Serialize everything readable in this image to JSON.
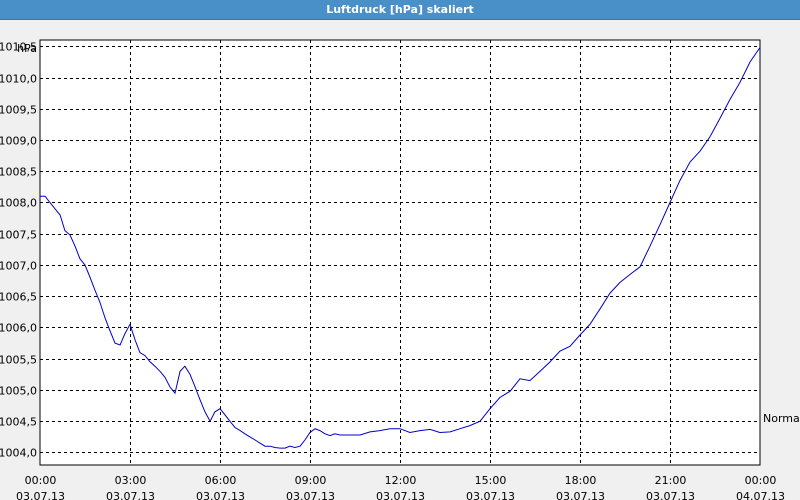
{
  "window": {
    "title": "Luftdruck [hPa] skaliert"
  },
  "colors": {
    "titlebar": "#4a90c8",
    "line": "#0000cc",
    "plot_bg": "#ffffff",
    "grid": "#000000"
  },
  "chart_data": {
    "type": "line",
    "title": "Luftdruck [hPa] skaliert",
    "ylabel": "hPa",
    "xlabel": "",
    "ylim": [
      1003.8,
      1010.6
    ],
    "y_ticks": [
      1004.0,
      1004.5,
      1005.0,
      1005.5,
      1006.0,
      1006.5,
      1007.0,
      1007.5,
      1008.0,
      1008.5,
      1009.0,
      1009.5,
      1010.0,
      1010.5
    ],
    "y_tick_labels": [
      "1004,0",
      "1004,5",
      "1005,0",
      "1005,5",
      "1006,0",
      "1006,5",
      "1007,0",
      "1007,5",
      "1008,0",
      "1008,5",
      "1009,0",
      "1009,5",
      "1010,0",
      "1010,5"
    ],
    "xlim": [
      "03.07.13 00:00",
      "04.07.13 00:00"
    ],
    "x_ticks": [
      {
        "hour": 0,
        "time": "00:00",
        "date": "03.07.13"
      },
      {
        "hour": 3,
        "time": "03:00",
        "date": "03.07.13"
      },
      {
        "hour": 6,
        "time": "06:00",
        "date": "03.07.13"
      },
      {
        "hour": 9,
        "time": "09:00",
        "date": "03.07.13"
      },
      {
        "hour": 12,
        "time": "12:00",
        "date": "03.07.13"
      },
      {
        "hour": 15,
        "time": "15:00",
        "date": "03.07.13"
      },
      {
        "hour": 18,
        "time": "18:00",
        "date": "03.07.13"
      },
      {
        "hour": 21,
        "time": "21:00",
        "date": "03.07.13"
      },
      {
        "hour": 24,
        "time": "00:00",
        "date": "04.07.13"
      }
    ],
    "grid": true,
    "reference_line": {
      "label": "Normal",
      "value": 1004.55
    },
    "series": [
      {
        "x": [
          0.0,
          0.17,
          0.33,
          0.5,
          0.67,
          0.83,
          1.0,
          1.17,
          1.33,
          1.5,
          1.67,
          1.83,
          2.0,
          2.17,
          2.33,
          2.5,
          2.67,
          2.83,
          3.0,
          3.17,
          3.33,
          3.5,
          3.67,
          3.83,
          4.0,
          4.17,
          4.33,
          4.5,
          4.67,
          4.83,
          5.0,
          5.17,
          5.33,
          5.5,
          5.67,
          5.83,
          6.0,
          6.17,
          6.33,
          6.5,
          6.67,
          6.83,
          7.0,
          7.17,
          7.33,
          7.5,
          7.67,
          7.83,
          8.0,
          8.17,
          8.33,
          8.5,
          8.67,
          8.83,
          9.0,
          9.17,
          9.33,
          9.5,
          9.67,
          9.83,
          10.0,
          10.33,
          10.67,
          11.0,
          11.33,
          11.67,
          12.0,
          12.33,
          12.67,
          13.0,
          13.33,
          13.67,
          14.0,
          14.33,
          14.67,
          15.0,
          15.33,
          15.67,
          16.0,
          16.33,
          16.67,
          17.0,
          17.33,
          17.67,
          18.0,
          18.33,
          18.67,
          19.0,
          19.33,
          19.67,
          20.0,
          20.33,
          20.67,
          21.0,
          21.33,
          21.67,
          22.0,
          22.33,
          22.67,
          23.0,
          23.33,
          23.67,
          24.0
        ],
        "values": [
          1008.1,
          1008.1,
          1008.0,
          1007.9,
          1007.8,
          1007.55,
          1007.48,
          1007.3,
          1007.1,
          1007.0,
          1006.8,
          1006.6,
          1006.4,
          1006.15,
          1005.95,
          1005.75,
          1005.72,
          1005.9,
          1006.05,
          1005.8,
          1005.6,
          1005.55,
          1005.45,
          1005.38,
          1005.3,
          1005.2,
          1005.05,
          1004.95,
          1005.3,
          1005.38,
          1005.25,
          1005.05,
          1004.85,
          1004.65,
          1004.5,
          1004.65,
          1004.7,
          1004.6,
          1004.5,
          1004.4,
          1004.35,
          1004.3,
          1004.25,
          1004.2,
          1004.15,
          1004.1,
          1004.1,
          1004.08,
          1004.07,
          1004.07,
          1004.1,
          1004.08,
          1004.1,
          1004.2,
          1004.32,
          1004.38,
          1004.35,
          1004.3,
          1004.27,
          1004.3,
          1004.28,
          1004.28,
          1004.28,
          1004.33,
          1004.35,
          1004.38,
          1004.38,
          1004.32,
          1004.35,
          1004.37,
          1004.32,
          1004.33,
          1004.38,
          1004.43,
          1004.5,
          1004.7,
          1004.88,
          1004.98,
          1005.18,
          1005.15,
          1005.3,
          1005.45,
          1005.62,
          1005.7,
          1005.88,
          1006.05,
          1006.3,
          1006.55,
          1006.72,
          1006.85,
          1006.97,
          1007.3,
          1007.65,
          1008.0,
          1008.35,
          1008.65,
          1008.82,
          1009.05,
          1009.35,
          1009.65,
          1009.92,
          1010.25,
          1010.48
        ]
      }
    ]
  }
}
